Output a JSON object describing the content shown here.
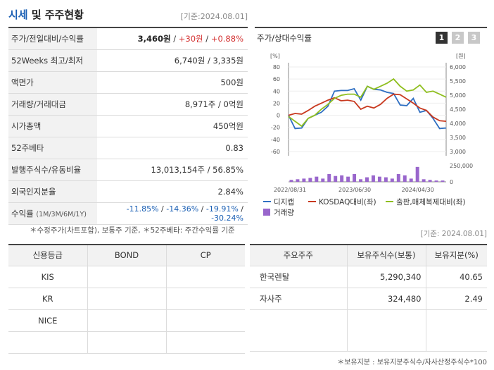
{
  "header": {
    "title_a": "시세",
    "title_b": "및 주주현황",
    "date": "[기준:2024.08.01]"
  },
  "info": {
    "rows": [
      {
        "label": "주가/전일대비/수익률",
        "price": "3,460원",
        "sep1": " / ",
        "change": "+30원",
        "sep2": " / ",
        "rate": "+0.88%"
      },
      {
        "label": "52Weeks 최고/최저",
        "value": "6,740원 / 3,335원"
      },
      {
        "label": "액면가",
        "value": "500원"
      },
      {
        "label": "거래량/거래대금",
        "value": "8,971주 / 0억원"
      },
      {
        "label": "시가총액",
        "value": "450억원"
      },
      {
        "label": "52주베타",
        "value": "0.83"
      },
      {
        "label": "발행주식수/유동비율",
        "value": "13,013,154주 / 56.85%"
      },
      {
        "label": "외국인지분율",
        "value": "2.84%"
      }
    ],
    "returns": {
      "label": "수익률",
      "sub": "(1M/3M/6M/1Y)",
      "r1": "-11.85%",
      "r2": "-14.36%",
      "r3": "-19.91%",
      "r4": "-30.24%"
    }
  },
  "chart": {
    "title": "주가/상대수익률",
    "tabs": [
      "1",
      "2",
      "3"
    ],
    "left_unit": "[%]",
    "right_unit": "[원]"
  },
  "chart_data": {
    "type": "line",
    "x_labels": [
      "2022/08/31",
      "2023/06/30",
      "2024/04/30"
    ],
    "y_left": {
      "unit": "%",
      "ticks": [
        80,
        60,
        40,
        20,
        0,
        -20,
        -40,
        -60
      ],
      "range": [
        -60,
        80
      ]
    },
    "y_right": {
      "unit": "원",
      "ticks": [
        "6,000",
        "5,500",
        "5,000",
        "4,500",
        "4,000",
        "3,500",
        "3,000"
      ],
      "range": [
        3000,
        6000
      ]
    },
    "volume_axis": {
      "ticks": [
        "250,000",
        "0"
      ]
    },
    "series": [
      {
        "name": "디지캡",
        "axis": "left",
        "color": "#2f6fc2",
        "values": [
          0,
          -22,
          -21,
          -5,
          0,
          5,
          15,
          40,
          41,
          41,
          44,
          25,
          48,
          43,
          42,
          38,
          36,
          17,
          16,
          28,
          5,
          8,
          -5,
          -22,
          -21
        ]
      },
      {
        "name": "KOSDAQ대비(좌)",
        "axis": "left",
        "color": "#c8391f",
        "values": [
          0,
          3,
          2,
          8,
          15,
          20,
          25,
          29,
          24,
          25,
          23,
          10,
          15,
          12,
          18,
          28,
          35,
          34,
          27,
          20,
          12,
          8,
          -3,
          -9,
          -10
        ]
      },
      {
        "name": "출판,매체복제대비(좌)",
        "axis": "left",
        "color": "#8fbf1f",
        "values": [
          -2,
          -10,
          -18,
          -5,
          0,
          10,
          18,
          28,
          33,
          35,
          35,
          30,
          48,
          43,
          48,
          53,
          60,
          48,
          40,
          42,
          50,
          38,
          40,
          35,
          30
        ]
      }
    ],
    "volume": {
      "name": "거래량",
      "color": "#9966cc",
      "values": [
        3,
        4,
        5,
        6,
        8,
        5,
        12,
        9,
        10,
        8,
        12,
        4,
        7,
        10,
        8,
        7,
        5,
        12,
        10,
        5,
        23,
        4,
        3,
        2,
        2
      ]
    }
  },
  "notes": {
    "n1": "＊수정주가(차트포함), 보통주 기준, ＊52주베타: 주간수익률 기준",
    "date2": "[기준: 2024.08.01]",
    "n2": "＊보유지분 : 보유지분주식수/자사산정주식수*100"
  },
  "credit": {
    "headers": [
      "신용등급",
      "BOND",
      "CP"
    ],
    "rows": [
      "KIS",
      "KR",
      "NICE",
      ""
    ]
  },
  "holders": {
    "headers": [
      "주요주주",
      "보유주식수(보통)",
      "보유지분(%)"
    ],
    "rows": [
      {
        "name": "한국렌탈",
        "shares": "5,290,340",
        "pct": "40.65"
      },
      {
        "name": "자사주",
        "shares": "324,480",
        "pct": "2.49"
      }
    ]
  }
}
